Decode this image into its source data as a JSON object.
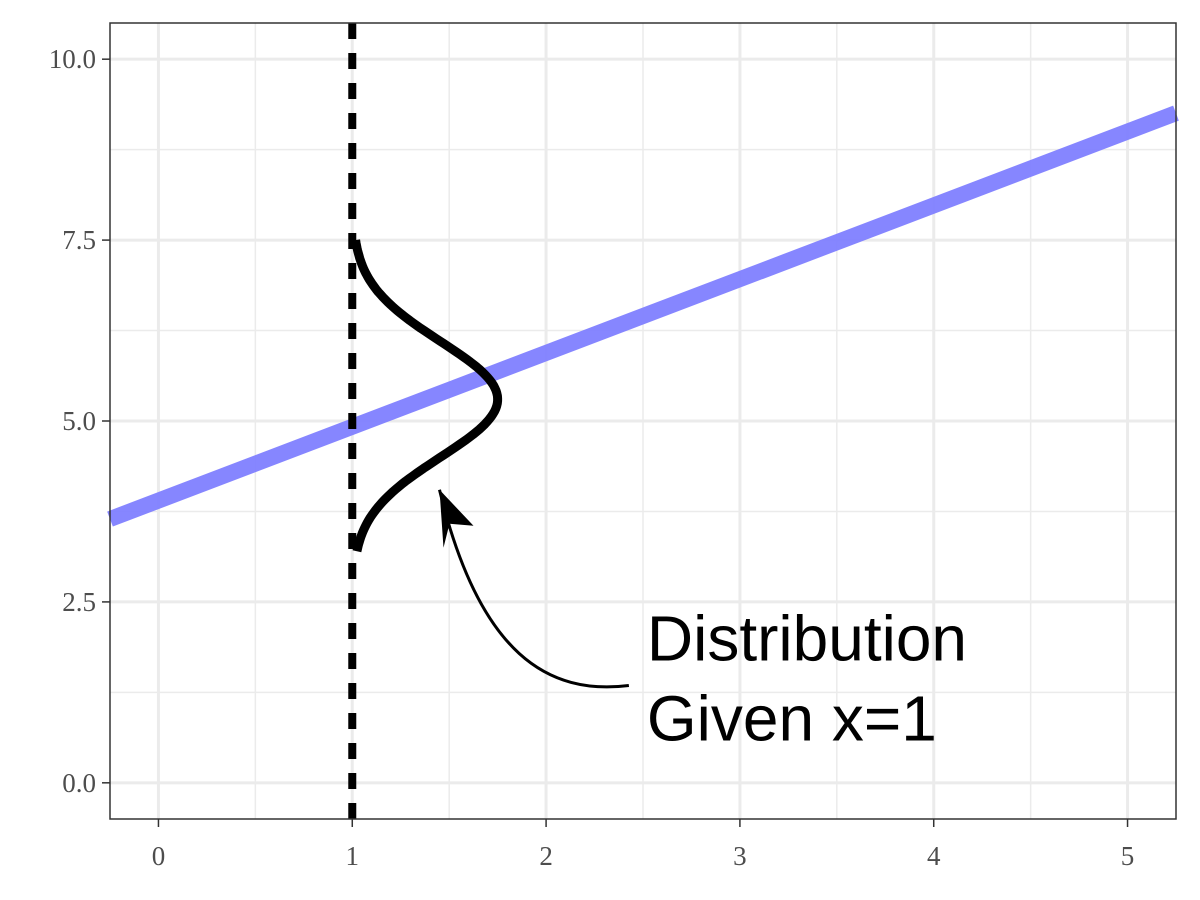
{
  "chart_data": {
    "type": "line",
    "title": "",
    "xlabel": "",
    "ylabel": "",
    "xlim": [
      -0.25,
      5.25
    ],
    "ylim": [
      -0.5,
      10.5
    ],
    "x_ticks": [
      0,
      1,
      2,
      3,
      4,
      5
    ],
    "x_tick_labels": [
      "0",
      "1",
      "2",
      "3",
      "4",
      "5"
    ],
    "y_ticks": [
      0,
      2.5,
      5,
      7.5,
      10
    ],
    "y_tick_labels": [
      "0.0",
      "2.5",
      "5.0",
      "7.5",
      "10.0"
    ],
    "grid": true,
    "regression_line": {
      "intercept": 3.9,
      "slope": 1.02,
      "color": "#7f7fff"
    },
    "reference_line": {
      "x": 1,
      "style": "dashed",
      "color": "#000000"
    },
    "conditional_distribution": {
      "x": 1,
      "mean": 5.3,
      "sd": 0.8,
      "peak_width": 0.75,
      "y_range": [
        3.2,
        7.5
      ],
      "color": "#000000"
    },
    "annotation": {
      "lines": [
        "Distribution",
        "Given x=1"
      ],
      "text_position": [
        2.52,
        1.0
      ],
      "arrow_tip": [
        1.45,
        4.05
      ]
    }
  }
}
